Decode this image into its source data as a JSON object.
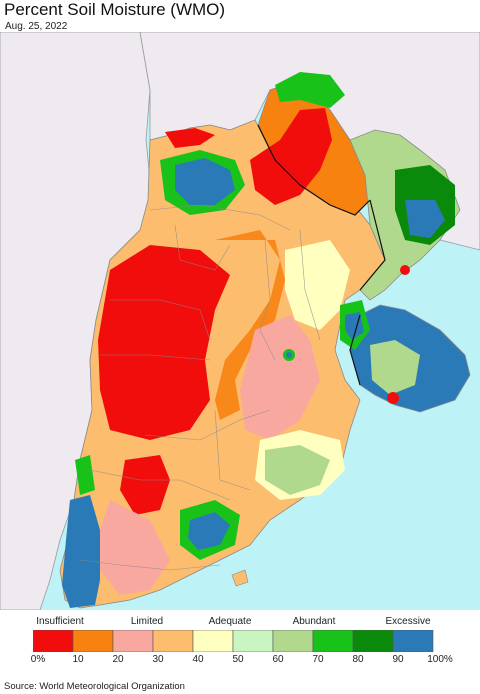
{
  "title": "Percent Soil Moisture (WMO)",
  "date": "Aug. 25, 2022",
  "legend": {
    "classes": [
      "Insufficient",
      "Limited",
      "Adequate",
      "Abundant",
      "Excessive"
    ],
    "ticks": [
      "0%",
      "10",
      "20",
      "30",
      "40",
      "50",
      "60",
      "70",
      "80",
      "90",
      "100%"
    ],
    "colors": [
      "#f20d0d",
      "#f7820f",
      "#f9a8a0",
      "#fcbd6e",
      "#ffffbf",
      "#c8f5c0",
      "#b0d98e",
      "#19c219",
      "#0a8a0a",
      "#2a7ab8"
    ]
  },
  "colors": {
    "ocean": "#bdf2f6",
    "outside_land": "#eeeaf0",
    "boundary": "#8a8a8a"
  },
  "source": "Source: World Meteorological Organization"
}
